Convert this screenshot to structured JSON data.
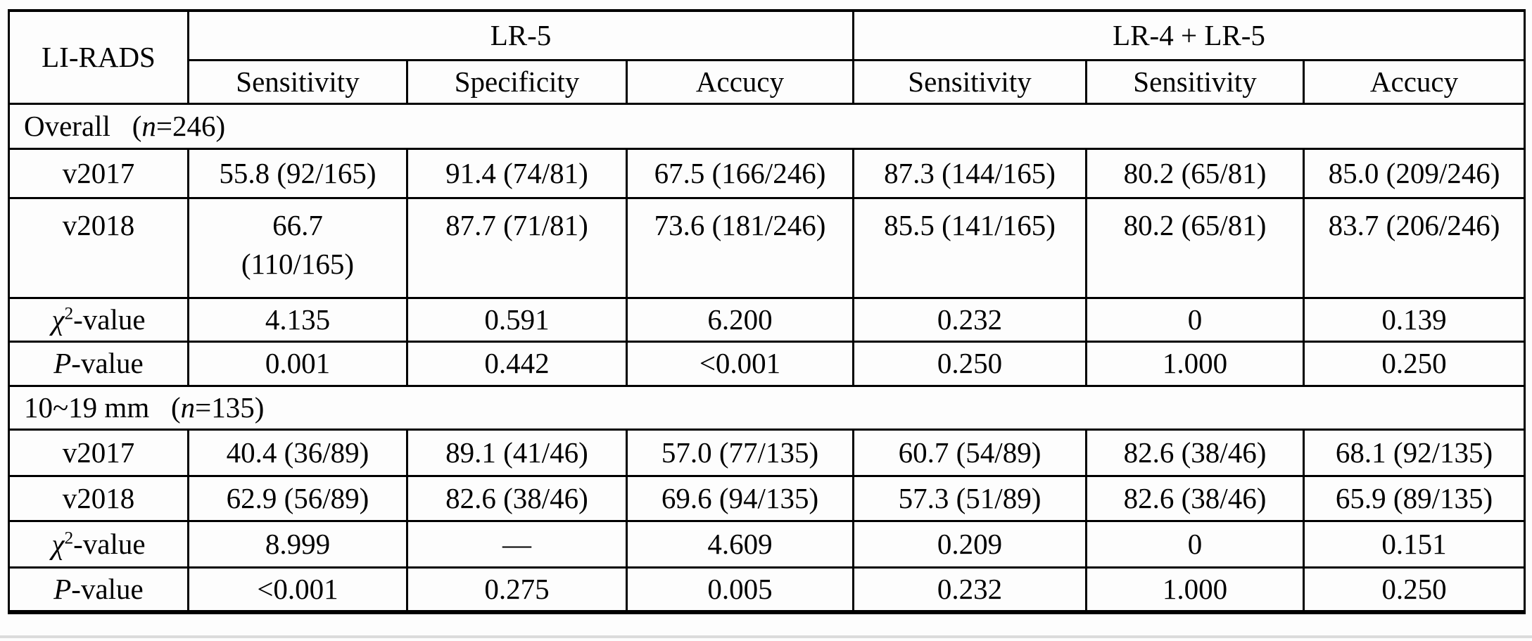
{
  "table": {
    "corner": "LI-RADS",
    "group_headers": [
      {
        "label": "LR-5"
      },
      {
        "label": "LR-4 + LR-5"
      }
    ],
    "sub_headers": [
      "Sensitivity",
      "Specificity",
      "Accucy",
      "Sensitivity",
      "Sensitivity",
      "Accucy"
    ],
    "sections": [
      {
        "title_html": "Overall&ensp;&nbsp;(<i>n</i>=246)",
        "rows": [
          {
            "label_html": "v2017",
            "cells": [
              "55.8 (92/165)",
              "91.4 (74/81)",
              "67.5 (166/246)",
              "87.3 (144/165)",
              "80.2 (65/81)",
              "85.0 (209/246)"
            ]
          },
          {
            "label_html": "v2018",
            "cells": [
              "66.7<br>(110/165)",
              "87.7 (71/81)",
              "73.6 (181/246)",
              "85.5 (141/165)",
              "80.2 (65/81)",
              "83.7 (206/246)"
            ]
          },
          {
            "label_html": "<i>χ</i><sup>2</sup>-value",
            "cells": [
              "4.135",
              "0.591",
              "6.200",
              "0.232",
              "0",
              "0.139"
            ]
          },
          {
            "label_html": "<i>P</i>-value",
            "cells": [
              "0.001",
              "0.442",
              "&lt;0.001",
              "0.250",
              "1.000",
              "0.250"
            ]
          }
        ]
      },
      {
        "title_html": "10~19 mm&ensp;&nbsp;(<i>n</i>=135)",
        "rows": [
          {
            "label_html": "v2017",
            "cells": [
              "40.4 (36/89)",
              "89.1 (41/46)",
              "57.0 (77/135)",
              "60.7 (54/89)",
              "82.6 (38/46)",
              "68.1 (92/135)"
            ]
          },
          {
            "label_html": "v2018",
            "cells": [
              "62.9 (56/89)",
              "82.6 (38/46)",
              "69.6 (94/135)",
              "57.3 (51/89)",
              "82.6 (38/46)",
              "65.9 (89/135)"
            ]
          },
          {
            "label_html": "<i>χ</i><sup>2</sup>-value",
            "cells": [
              "8.999",
              "—",
              "4.609",
              "0.209",
              "0",
              "0.151"
            ]
          },
          {
            "label_html": "<i>P</i>-value",
            "cells": [
              "&lt;0.001",
              "0.275",
              "0.005",
              "0.232",
              "1.000",
              "0.250"
            ]
          }
        ]
      }
    ]
  }
}
